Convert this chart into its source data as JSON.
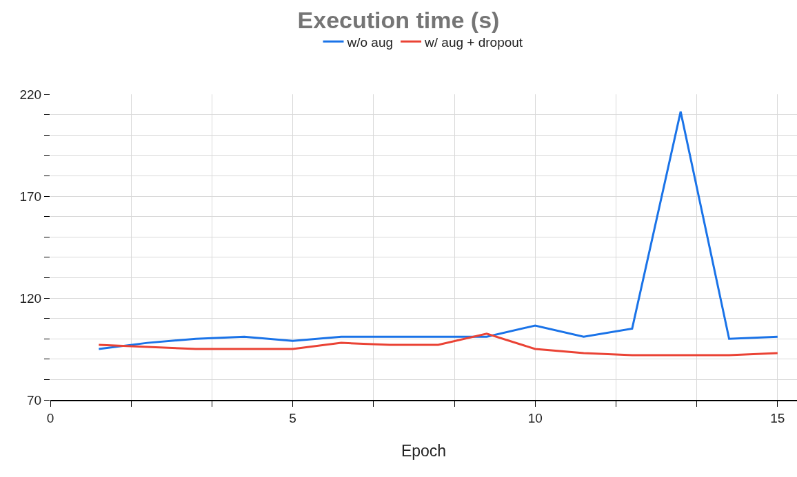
{
  "chart_data": {
    "type": "line",
    "title": "Execution time (s)",
    "xlabel": "Epoch",
    "x": [
      1,
      2,
      3,
      4,
      5,
      6,
      7,
      8,
      9,
      10,
      11,
      12,
      13,
      14,
      15
    ],
    "series": [
      {
        "name": "w/o aug",
        "color": "#1a73e8",
        "values": [
          95,
          98,
          100,
          101,
          99,
          101,
          101,
          101,
          101,
          106.5,
          101,
          105,
          211.5,
          100,
          101
        ]
      },
      {
        "name": "w/ aug + dropout",
        "color": "#ea4335",
        "values": [
          97,
          96,
          95,
          95,
          95,
          98,
          97,
          97,
          102.5,
          95,
          93,
          92,
          92,
          92,
          93
        ]
      }
    ],
    "xlim": [
      0,
      15.4
    ],
    "xticks": [
      0,
      {
        "value": 1.667,
        "label": null
      },
      {
        "value": 3.333,
        "label": null
      },
      5,
      {
        "value": 6.667,
        "label": null
      },
      {
        "value": 8.333,
        "label": null
      },
      10,
      {
        "value": 11.667,
        "label": null
      },
      {
        "value": 13.333,
        "label": null
      },
      15
    ],
    "ylim": [
      70,
      220
    ],
    "yticks": [
      70,
      {
        "value": 80,
        "label": null
      },
      {
        "value": 90,
        "label": null
      },
      {
        "value": 100,
        "label": null
      },
      {
        "value": 110,
        "label": null
      },
      120,
      {
        "value": 130,
        "label": null
      },
      {
        "value": 140,
        "label": null
      },
      {
        "value": 150,
        "label": null
      },
      {
        "value": 160,
        "label": null
      },
      170,
      {
        "value": 180,
        "label": null
      },
      {
        "value": 190,
        "label": null
      },
      {
        "value": 200,
        "label": null
      },
      {
        "value": 210,
        "label": null
      },
      220
    ],
    "grid": true,
    "legend": "top",
    "marker": "none",
    "line_style": "solid"
  }
}
